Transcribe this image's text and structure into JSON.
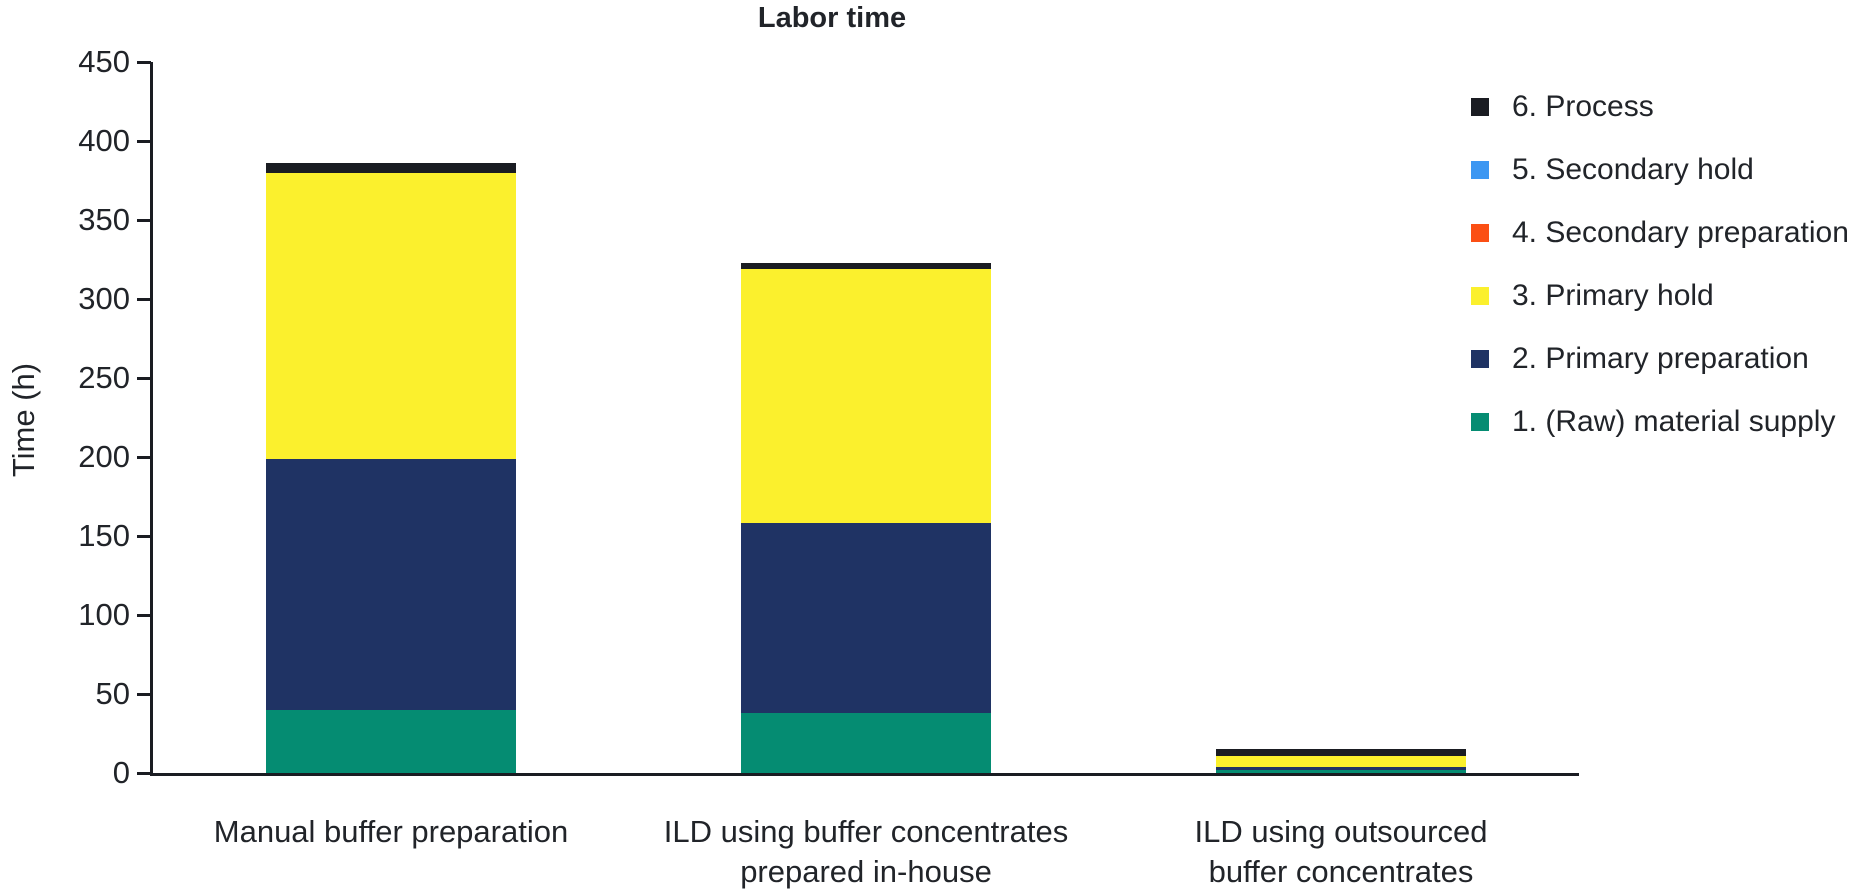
{
  "chart_data": {
    "type": "bar",
    "stacked": true,
    "title": "Labor time",
    "ylabel": "Time (h)",
    "xlabel": "",
    "ylim": [
      0,
      450
    ],
    "yticks": [
      0,
      50,
      100,
      150,
      200,
      250,
      300,
      350,
      400,
      450
    ],
    "grid": false,
    "legend_position": "right",
    "legend_order": [
      "6. Process",
      "5. Secondary hold",
      "4. Secondary preparation",
      "3. Primary hold",
      "2. Primary preparation",
      "1. (Raw) material supply"
    ],
    "categories": [
      {
        "label": "Manual buffer preparation",
        "lines": [
          "Manual buffer preparation"
        ]
      },
      {
        "label": "ILD using buffer concentrates prepared in-house",
        "lines": [
          "ILD using buffer concentrates",
          "prepared in-house"
        ]
      },
      {
        "label": "ILD using outsourced buffer concentrates",
        "lines": [
          "ILD using outsourced",
          "buffer concentrates"
        ]
      }
    ],
    "series": [
      {
        "name": "1. (Raw) material supply",
        "color": "#058C72",
        "values": [
          40,
          38,
          2
        ]
      },
      {
        "name": "2. Primary preparation",
        "color": "#1F3364",
        "values": [
          159,
          120,
          2
        ]
      },
      {
        "name": "3. Primary hold",
        "color": "#FBF02D",
        "values": [
          181,
          161,
          7
        ]
      },
      {
        "name": "4. Secondary preparation",
        "color": "#FB4F14",
        "values": [
          0,
          0,
          0
        ]
      },
      {
        "name": "5. Secondary hold",
        "color": "#3D97F2",
        "values": [
          0,
          0,
          0
        ]
      },
      {
        "name": "6. Process",
        "color": "#1A1C22",
        "values": [
          6,
          4,
          4
        ]
      }
    ],
    "totals": [
      386,
      323,
      15
    ],
    "colors": {
      "axis": "#1A1C22",
      "text": "#212429"
    }
  }
}
